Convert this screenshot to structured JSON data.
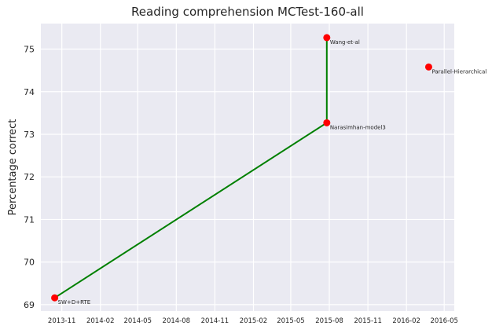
{
  "chart_data": {
    "type": "line",
    "title": "Reading comprehension MCTest-160-all",
    "xlabel": "",
    "ylabel": "Percentage correct",
    "x_axis": {
      "type": "date",
      "range": [
        "2013-09-12",
        "2016-05-25"
      ],
      "ticks": [
        "2013-11",
        "2014-02",
        "2014-05",
        "2014-08",
        "2014-11",
        "2015-02",
        "2015-05",
        "2015-08",
        "2015-11",
        "2016-02",
        "2016-05"
      ]
    },
    "ylim": [
      68.85,
      75.6
    ],
    "yticks": [
      69,
      70,
      71,
      72,
      73,
      74,
      75
    ],
    "grid": true,
    "background": "#eaeaf2",
    "points": [
      {
        "label": "SW+D+RTE",
        "date": "2013-10-15",
        "value": 69.16
      },
      {
        "label": "Narasimhan-model3",
        "date": "2015-07-26",
        "value": 73.27
      },
      {
        "label": "Wang-et-al",
        "date": "2015-07-26",
        "value": 75.27
      },
      {
        "label": "Parallel-Hierarchical",
        "date": "2016-03-25",
        "value": 74.58
      }
    ],
    "frontier": {
      "color": "#008000",
      "points": [
        {
          "date": "2013-10-15",
          "value": 69.16
        },
        {
          "date": "2015-07-26",
          "value": 73.27
        },
        {
          "date": "2015-07-26",
          "value": 75.27
        }
      ]
    },
    "marker_color": "#ff0000"
  }
}
